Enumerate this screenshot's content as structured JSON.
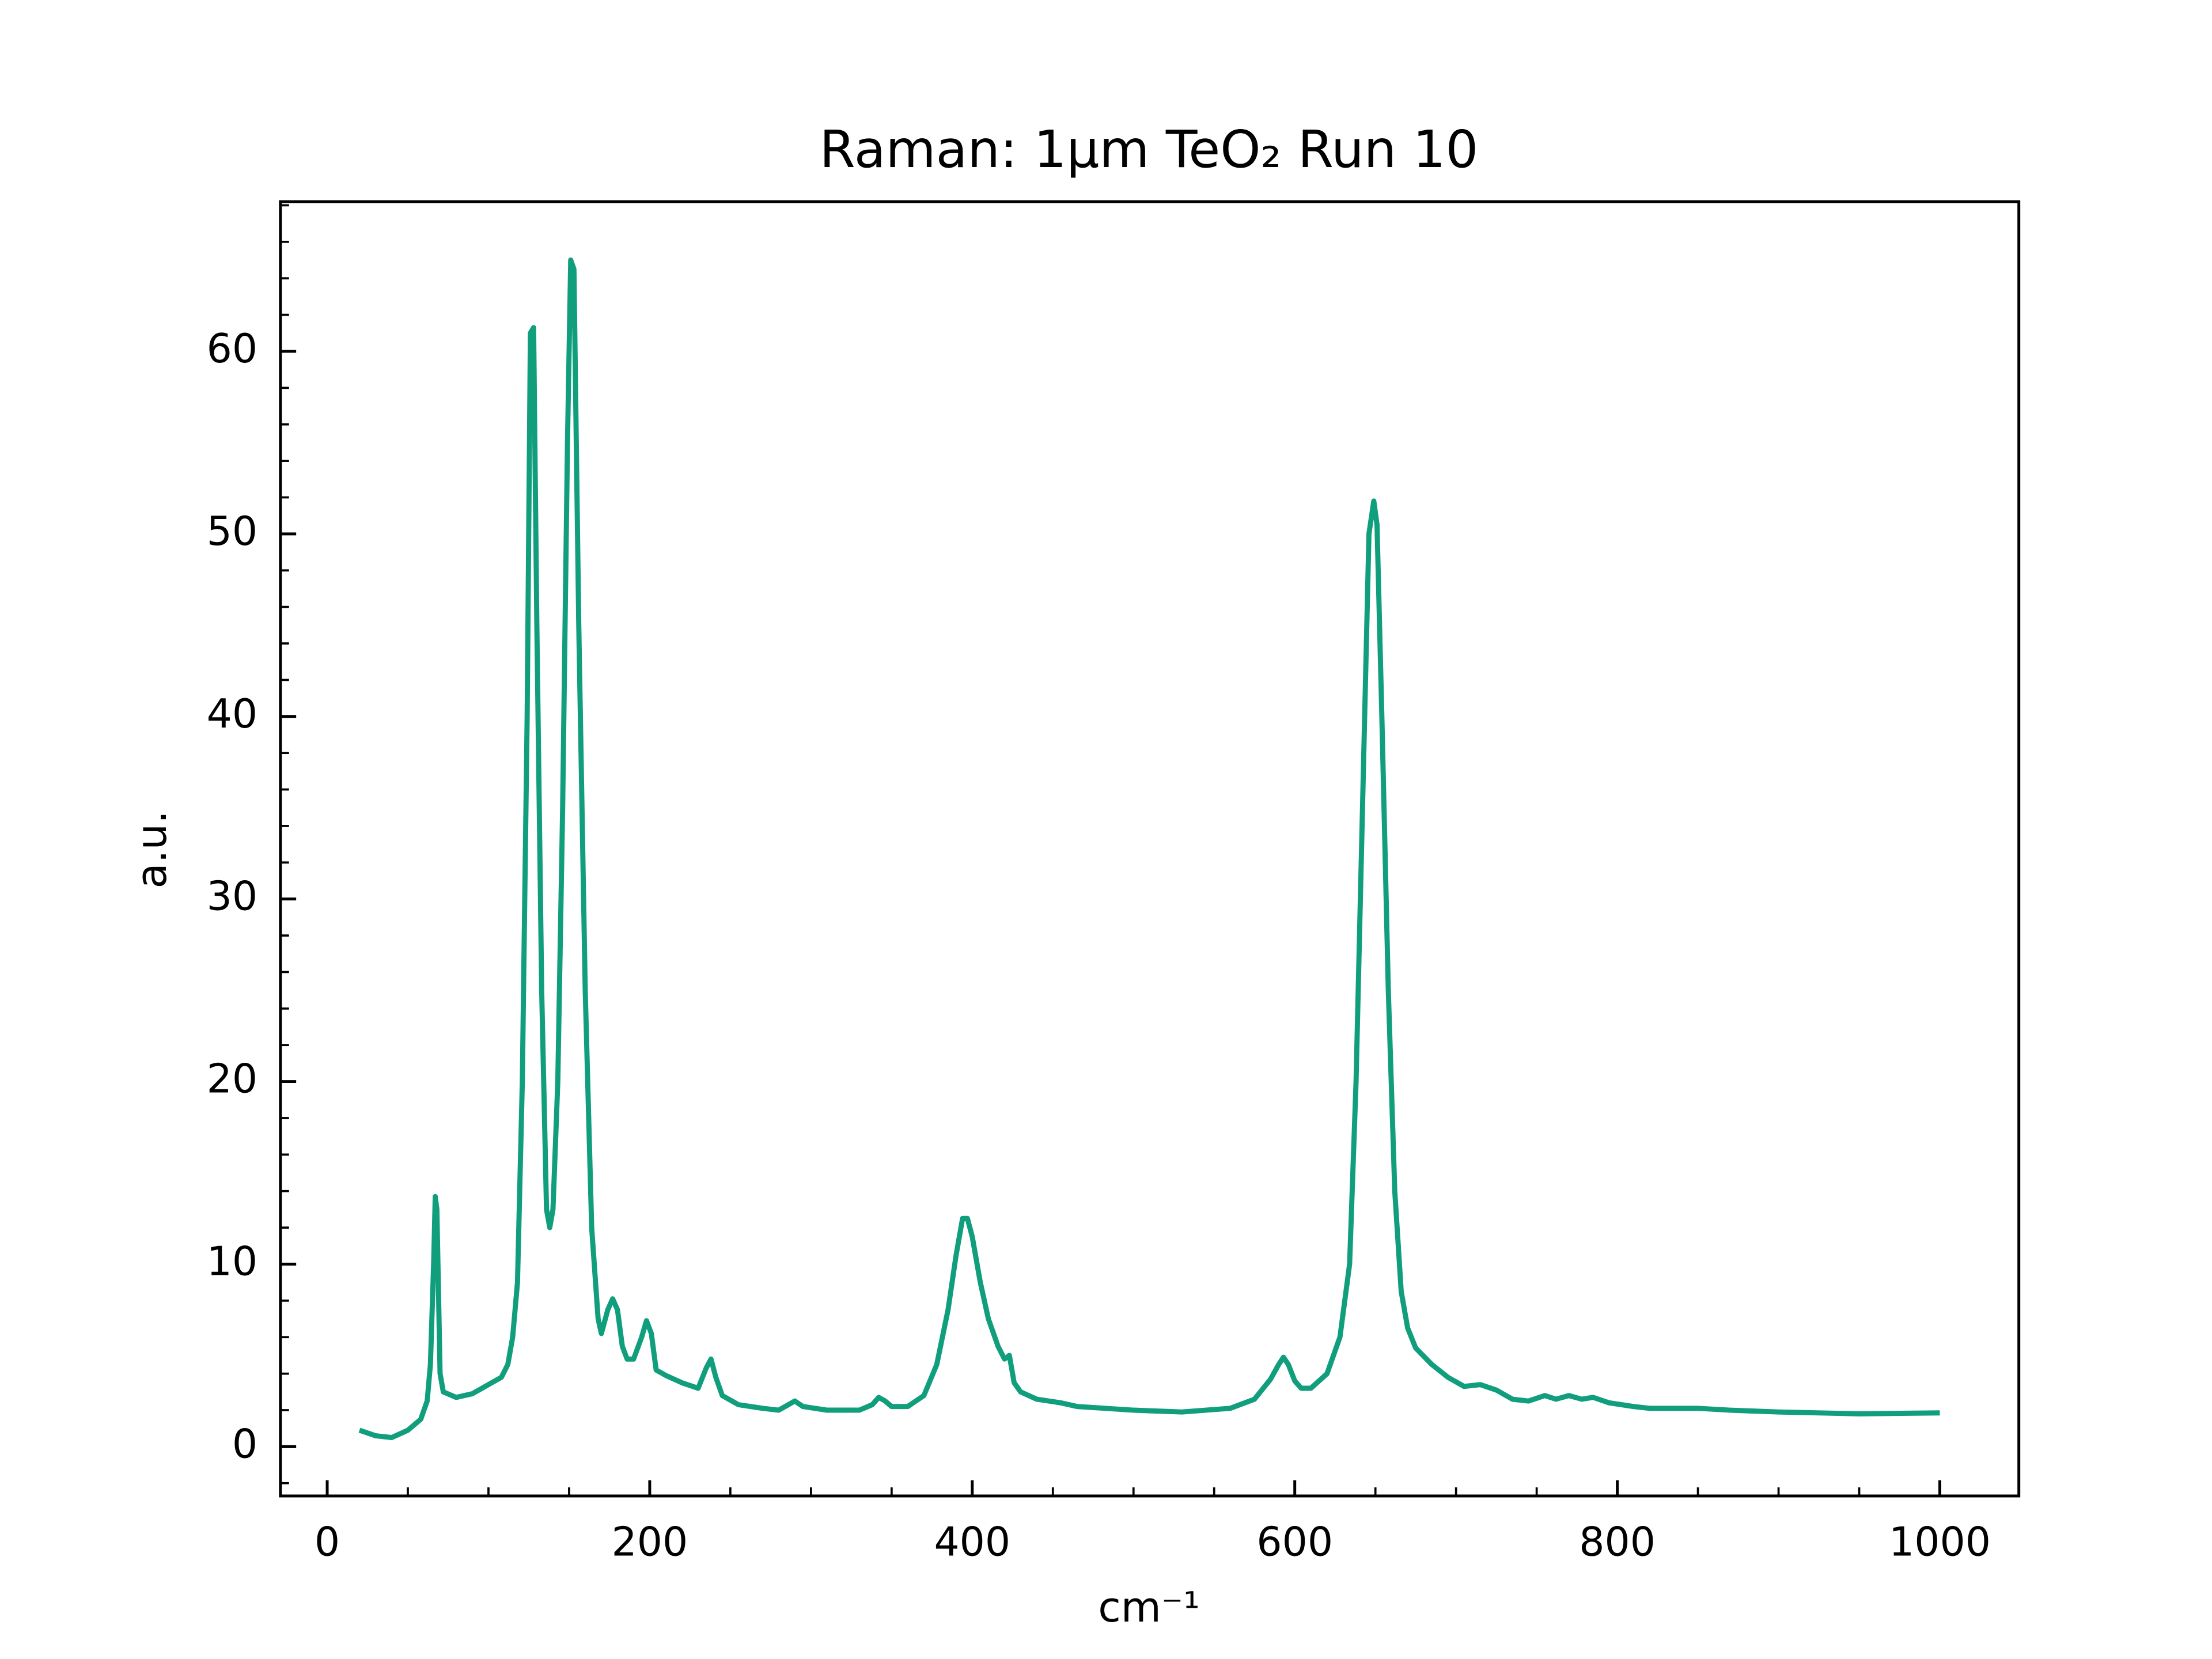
{
  "chart_data": {
    "type": "line",
    "title": "Raman: 1μm TeO₂ Run 10",
    "xlabel": "cm⁻¹",
    "ylabel": "a.u.",
    "color": "#119e7d",
    "xlim": [
      -29,
      1049
    ],
    "ylim": [
      -2.7,
      68.2
    ],
    "xticks": [
      0,
      200,
      400,
      600,
      800,
      1000
    ],
    "yticks": [
      0,
      10,
      20,
      30,
      40,
      50,
      60
    ],
    "xminorticks": [
      50,
      100,
      150,
      250,
      300,
      350,
      450,
      500,
      550,
      650,
      700,
      750,
      850,
      900,
      950
    ],
    "yminorticks": [
      -2,
      2,
      4,
      6,
      8,
      12,
      14,
      16,
      18,
      22,
      24,
      26,
      28,
      32,
      34,
      36,
      38,
      42,
      44,
      46,
      48,
      52,
      54,
      56,
      58,
      62,
      64,
      66,
      68
    ],
    "x": [
      20,
      30,
      40,
      50,
      58,
      62,
      64,
      66,
      67,
      68,
      70,
      72,
      80,
      90,
      100,
      108,
      112,
      115,
      118,
      121,
      124,
      126,
      128,
      130,
      133,
      136,
      138,
      140,
      143,
      146,
      149,
      151,
      153,
      156,
      160,
      164,
      168,
      170,
      174,
      177,
      180,
      183,
      186,
      190,
      195,
      198,
      201,
      204,
      210,
      220,
      230,
      235,
      238,
      241,
      245,
      255,
      270,
      280,
      290,
      295,
      310,
      330,
      338,
      342,
      346,
      350,
      360,
      370,
      378,
      385,
      390,
      394,
      397,
      400,
      405,
      410,
      416,
      420,
      423,
      426,
      430,
      440,
      455,
      465,
      500,
      530,
      560,
      575,
      585,
      590,
      593,
      596,
      600,
      604,
      610,
      620,
      628,
      634,
      638,
      642,
      646,
      649,
      651,
      654,
      658,
      662,
      666,
      670,
      675,
      685,
      695,
      705,
      715,
      725,
      735,
      745,
      755,
      762,
      770,
      778,
      785,
      795,
      810,
      820,
      850,
      870,
      900,
      950,
      1000
    ],
    "values": [
      0.9,
      0.6,
      0.5,
      0.9,
      1.5,
      2.5,
      4.5,
      10,
      13.7,
      13,
      4,
      3,
      2.7,
      2.9,
      3.4,
      3.8,
      4.5,
      6,
      9,
      20,
      40,
      61,
      61.3,
      45,
      25,
      13,
      12,
      13,
      20,
      35,
      55,
      65,
      64.5,
      45,
      25,
      12,
      7,
      6.2,
      7.5,
      8.1,
      7.5,
      5.5,
      4.8,
      4.8,
      6,
      6.9,
      6.2,
      4.2,
      3.9,
      3.5,
      3.2,
      4.3,
      4.8,
      3.8,
      2.8,
      2.3,
      2.1,
      2.0,
      2.5,
      2.2,
      2.0,
      2.0,
      2.3,
      2.7,
      2.5,
      2.2,
      2.2,
      2.8,
      4.5,
      7.5,
      10.5,
      12.5,
      12.5,
      11.5,
      9,
      7,
      5.5,
      4.8,
      5.0,
      3.5,
      3.0,
      2.6,
      2.4,
      2.2,
      2.0,
      1.9,
      2.1,
      2.6,
      3.7,
      4.5,
      4.9,
      4.5,
      3.6,
      3.2,
      3.2,
      4,
      6,
      10,
      20,
      35,
      50,
      51.8,
      50.5,
      40,
      25,
      14,
      8.5,
      6.5,
      5.4,
      4.5,
      3.8,
      3.3,
      3.4,
      3.1,
      2.6,
      2.5,
      2.8,
      2.6,
      2.8,
      2.6,
      2.7,
      2.4,
      2.2,
      2.1,
      2.1,
      2.0,
      1.9,
      1.8,
      1.85
    ]
  }
}
